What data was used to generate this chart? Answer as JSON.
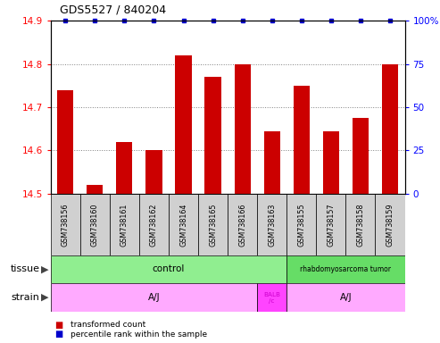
{
  "title": "GDS5527 / 840204",
  "samples": [
    "GSM738156",
    "GSM738160",
    "GSM738161",
    "GSM738162",
    "GSM738164",
    "GSM738165",
    "GSM738166",
    "GSM738163",
    "GSM738155",
    "GSM738157",
    "GSM738158",
    "GSM738159"
  ],
  "bar_values": [
    14.74,
    14.52,
    14.62,
    14.6,
    14.82,
    14.77,
    14.8,
    14.645,
    14.75,
    14.645,
    14.675,
    14.8
  ],
  "percentile_values": [
    100,
    100,
    100,
    100,
    100,
    100,
    100,
    100,
    100,
    100,
    100,
    100
  ],
  "bar_color": "#cc0000",
  "percentile_color": "#0000cc",
  "ylim_left": [
    14.5,
    14.9
  ],
  "ylim_right": [
    0,
    100
  ],
  "yticks_left": [
    14.5,
    14.6,
    14.7,
    14.8,
    14.9
  ],
  "yticks_right": [
    0,
    25,
    50,
    75,
    100
  ],
  "ytick_labels_right": [
    "0",
    "25",
    "50",
    "75",
    "100%"
  ],
  "tissue_groups": [
    {
      "label": "control",
      "start": 0,
      "end": 8,
      "color": "#90ee90"
    },
    {
      "label": "rhabdomyosarcoma tumor",
      "start": 8,
      "end": 12,
      "color": "#66dd66"
    }
  ],
  "strain_groups": [
    {
      "label": "A/J",
      "start": 0,
      "end": 7,
      "color": "#ffaaff"
    },
    {
      "label": "BALB\n/c",
      "start": 7,
      "end": 8,
      "color": "#ff44ff"
    },
    {
      "label": "A/J",
      "start": 8,
      "end": 12,
      "color": "#ffaaff"
    }
  ],
  "tissue_label": "tissue",
  "strain_label": "strain",
  "legend_items": [
    {
      "label": "transformed count",
      "color": "#cc0000"
    },
    {
      "label": "percentile rank within the sample",
      "color": "#0000cc"
    }
  ],
  "sample_box_color": "#d0d0d0",
  "bar_width": 0.55
}
